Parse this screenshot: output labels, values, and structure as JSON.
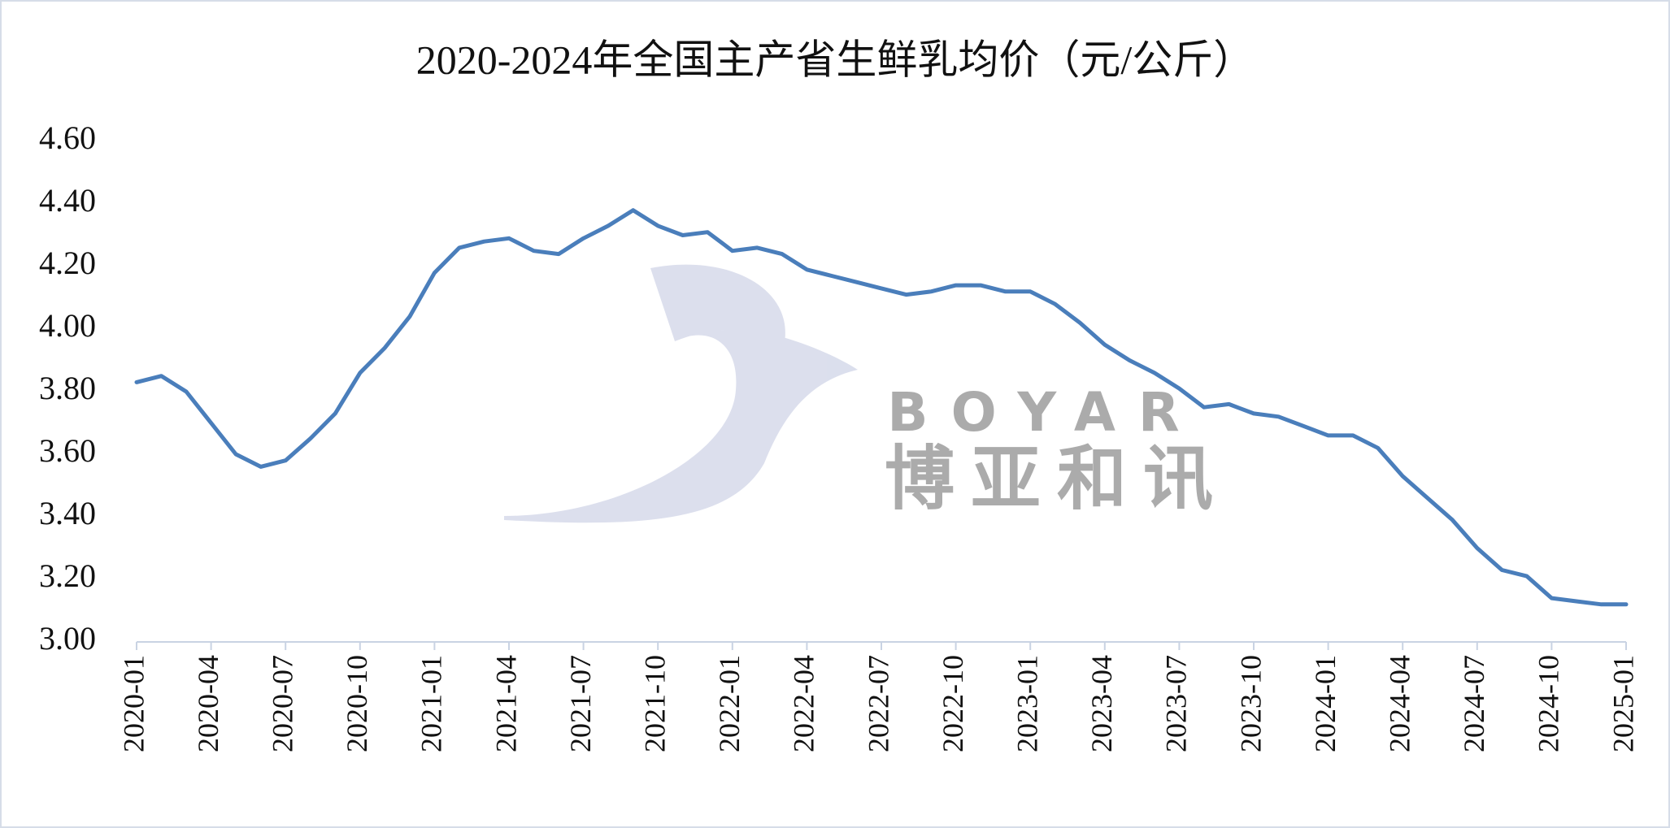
{
  "chart_data": {
    "type": "line",
    "title": "2020-2024年全国主产省生鲜乳均价（元/公斤）",
    "categories": [
      "2020-01",
      null,
      null,
      "2020-04",
      null,
      null,
      "2020-07",
      null,
      null,
      "2020-10",
      null,
      null,
      "2021-01",
      null,
      null,
      "2021-04",
      null,
      null,
      "2021-07",
      null,
      null,
      "2021-10",
      null,
      null,
      "2022-01",
      null,
      null,
      "2022-04",
      null,
      null,
      "2022-07",
      null,
      null,
      "2022-10",
      null,
      null,
      "2023-01",
      null,
      null,
      "2023-04",
      null,
      null,
      "2023-07",
      null,
      null,
      "2023-10",
      null,
      null,
      "2024-01",
      null,
      null,
      "2024-04",
      null,
      null,
      "2024-07",
      null,
      null,
      "2024-10",
      null,
      null,
      "2025-01"
    ],
    "values": [
      3.83,
      3.85,
      3.8,
      3.7,
      3.6,
      3.56,
      3.58,
      3.65,
      3.73,
      3.86,
      3.94,
      4.04,
      4.18,
      4.26,
      4.28,
      4.29,
      4.25,
      4.24,
      4.29,
      4.33,
      4.38,
      4.33,
      4.3,
      4.31,
      4.25,
      4.26,
      4.24,
      4.19,
      4.17,
      4.15,
      4.13,
      4.11,
      4.12,
      4.14,
      4.14,
      4.12,
      4.12,
      4.08,
      4.02,
      3.95,
      3.9,
      3.86,
      3.81,
      3.75,
      3.76,
      3.73,
      3.72,
      3.69,
      3.66,
      3.66,
      3.62,
      3.53,
      3.46,
      3.39,
      3.3,
      3.23,
      3.21,
      3.14,
      3.13,
      3.12,
      3.12
    ],
    "color": "#4a7ebb",
    "ylim": [
      3.0,
      4.6
    ],
    "yticks": [
      {
        "value": 3.0,
        "label": "3.00"
      },
      {
        "value": 3.2,
        "label": "3.20"
      },
      {
        "value": 3.4,
        "label": "3.40"
      },
      {
        "value": 3.6,
        "label": "3.60"
      },
      {
        "value": 3.8,
        "label": "3.80"
      },
      {
        "value": 4.0,
        "label": "4.00"
      },
      {
        "value": 4.2,
        "label": "4.20"
      },
      {
        "value": 4.4,
        "label": "4.40"
      },
      {
        "value": 4.6,
        "label": "4.60"
      }
    ],
    "grid": false,
    "watermark": {
      "latin": "BOYAR",
      "chinese": "博亚和讯"
    }
  }
}
